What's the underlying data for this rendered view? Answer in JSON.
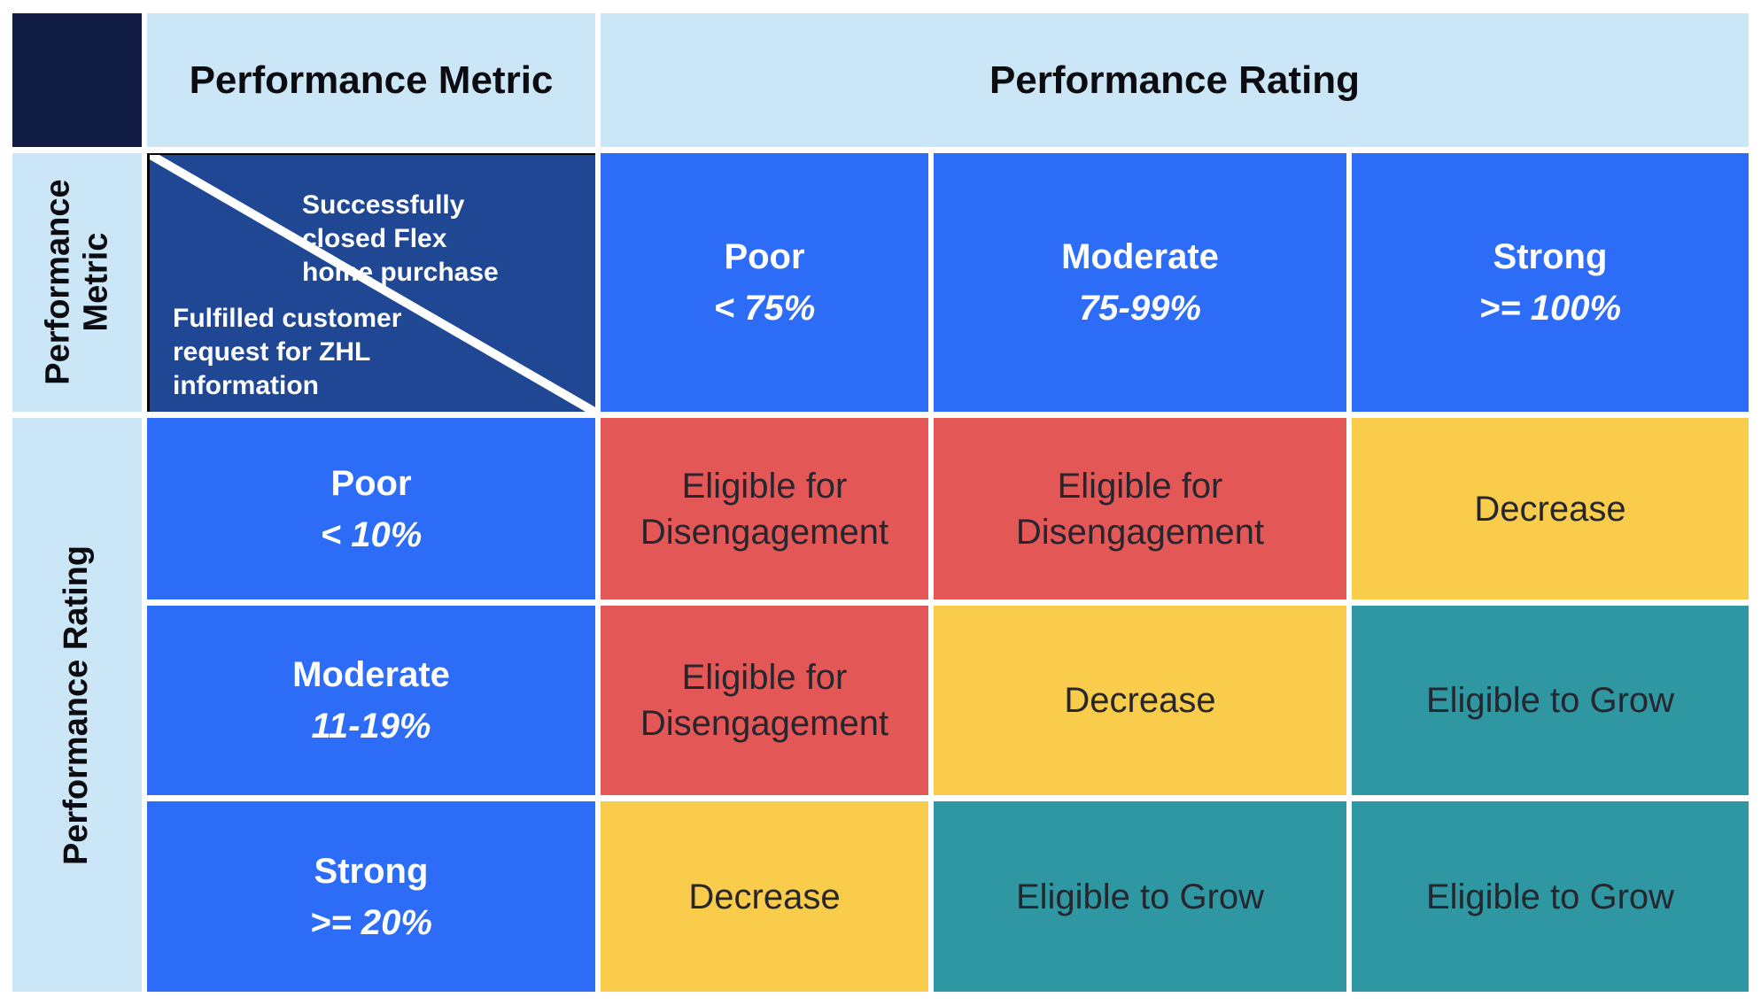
{
  "headers": {
    "top_metric": "Performance Metric",
    "top_rating": "Performance Rating",
    "side_metric": "Performance Metric",
    "side_rating": "Performance Rating"
  },
  "diagonal": {
    "top_right": "Successfully closed Flex home purchase",
    "bottom_left": "Fulfilled customer request for ZHL information"
  },
  "columns": [
    {
      "label": "Poor",
      "range": "< 75%"
    },
    {
      "label": "Moderate",
      "range": "75-99%"
    },
    {
      "label": "Strong",
      "range": ">= 100%"
    }
  ],
  "rows": [
    {
      "label": "Poor",
      "range": "< 10%"
    },
    {
      "label": "Moderate",
      "range": "11-19%"
    },
    {
      "label": "Strong",
      "range": ">= 20%"
    }
  ],
  "matrix": [
    [
      "Eligible for Disengagement",
      "Eligible for Disengagement",
      "Decrease"
    ],
    [
      "Eligible for Disengagement",
      "Decrease",
      "Eligible to Grow"
    ],
    [
      "Decrease",
      "Eligible to Grow",
      "Eligible to Grow"
    ]
  ],
  "matrix_status": [
    [
      "disengagement",
      "disengagement",
      "decrease"
    ],
    [
      "disengagement",
      "decrease",
      "grow"
    ],
    [
      "decrease",
      "grow",
      "grow"
    ]
  ],
  "colors": {
    "corner_navy": "#111C45",
    "diagonal_navy": "#1F4793",
    "header_light_blue": "#CBE7F7",
    "rating_blue": "#2D6CF6",
    "disengagement_red": "#E35757",
    "decrease_yellow": "#F9CC4C",
    "grow_teal": "#2F97A2",
    "dark_text": "#26262E",
    "white": "#FFFFFF"
  },
  "chart_data": {
    "type": "table",
    "title": "",
    "top_group_headers": [
      "Performance Metric",
      "Performance Rating"
    ],
    "left_group_labels": [
      "Performance Metric",
      "Performance Rating"
    ],
    "column_metric": "Successfully closed Flex home purchase",
    "row_metric": "Fulfilled customer request for ZHL information",
    "columns": [
      "Poor < 75%",
      "Moderate 75-99%",
      "Strong >= 100%"
    ],
    "rows": [
      "Poor < 10%",
      "Moderate 11-19%",
      "Strong >= 20%"
    ],
    "cells": [
      [
        "Eligible for Disengagement",
        "Eligible for Disengagement",
        "Decrease"
      ],
      [
        "Eligible for Disengagement",
        "Decrease",
        "Eligible to Grow"
      ],
      [
        "Decrease",
        "Eligible to Grow",
        "Eligible to Grow"
      ]
    ]
  }
}
